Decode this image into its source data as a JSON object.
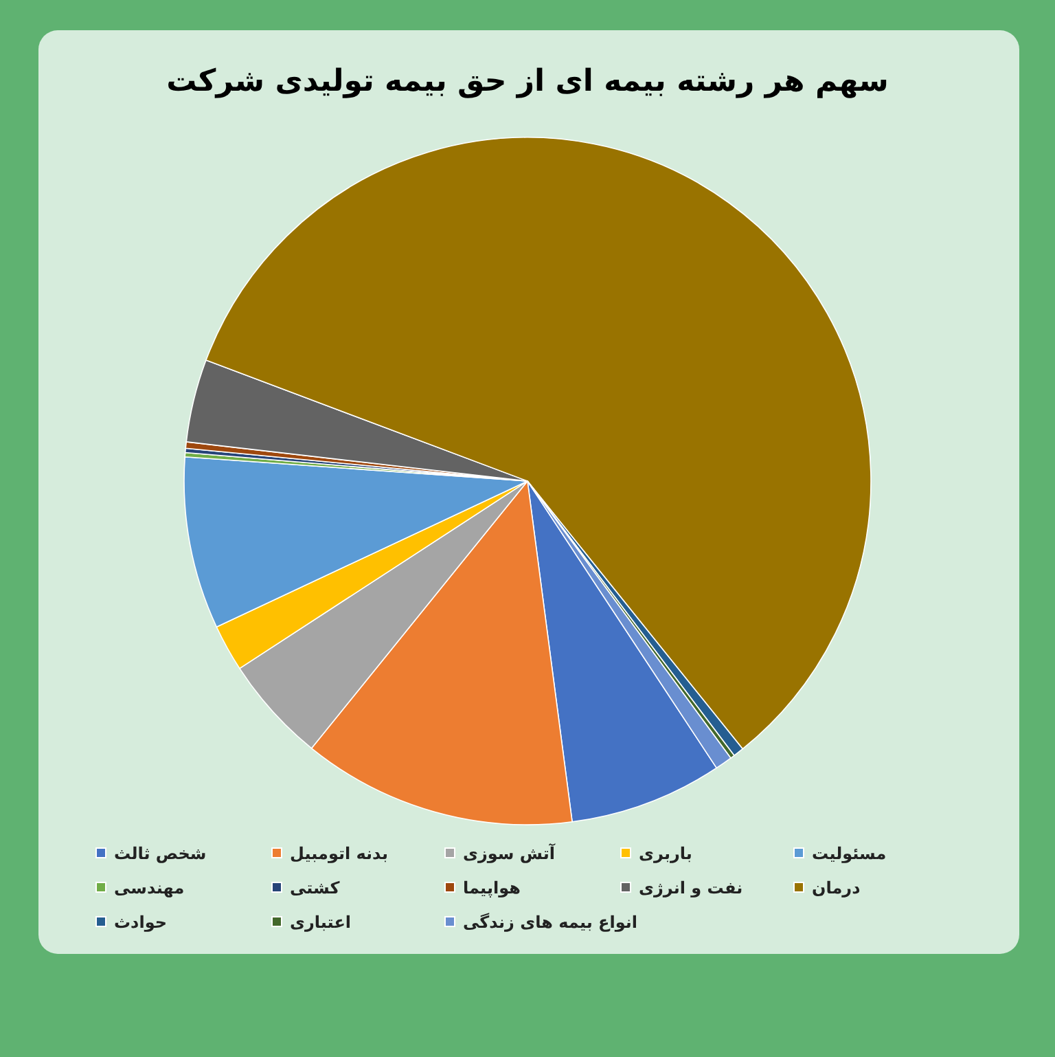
{
  "chart_data": {
    "type": "pie",
    "title": "سهم هر رشته بیمه ای از حق بیمه تولیدی شرکت",
    "categories": [
      "شخص ثالث",
      "بدنه اتومبیل",
      "آتش سوزی",
      "باربری",
      "مسئولیت",
      "مهندسی",
      "کشتی",
      "هواپیما",
      "نفت و انرژی",
      "درمان",
      "حوادث",
      "اعتباری",
      "انواع بیمه های زندگی"
    ],
    "values": [
      7.2,
      12.9,
      5.0,
      2.2,
      8.1,
      0.2,
      0.2,
      0.3,
      3.9,
      58.5,
      0.5,
      0.2,
      0.8
    ],
    "colors": [
      "#4472c4",
      "#ed7d31",
      "#a5a5a5",
      "#ffc000",
      "#5b9bd5",
      "#70ad47",
      "#264478",
      "#9e480e",
      "#636363",
      "#997300",
      "#255e91",
      "#43682b",
      "#698ed0"
    ],
    "legend": "bottom"
  }
}
